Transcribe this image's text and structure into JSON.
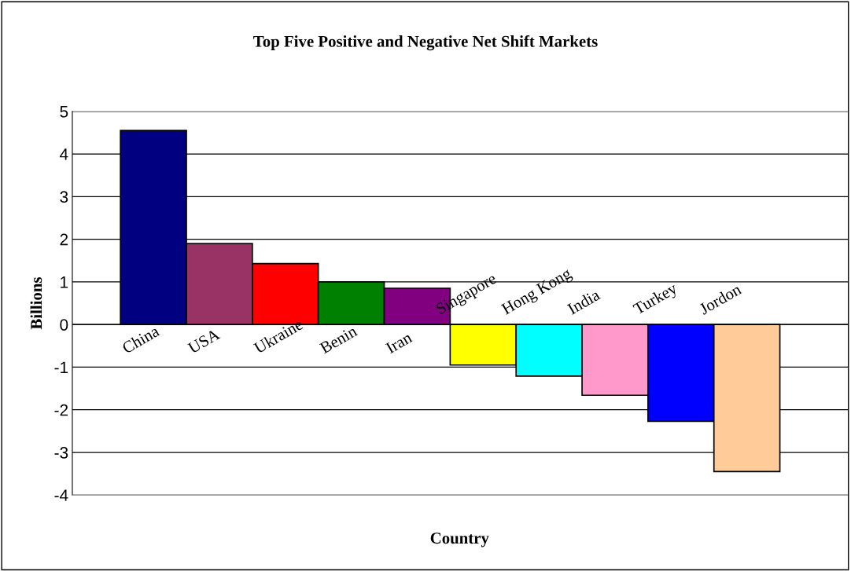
{
  "chart_data": {
    "type": "bar",
    "title": "Top Five Positive and Negative Net Shift Markets",
    "xlabel": "Country",
    "ylabel": "Billions",
    "categories": [
      "China",
      "USA",
      "Ukraine",
      "Benin",
      "Iran",
      "Singapore",
      "Hong Kong",
      "India",
      "Turkey",
      "Jordon"
    ],
    "values": [
      4.55,
      1.9,
      1.43,
      1.0,
      0.85,
      -0.95,
      -1.21,
      -1.66,
      -2.27,
      -3.45
    ],
    "colors": [
      "#000080",
      "#993366",
      "#ff0000",
      "#008000",
      "#800080",
      "#ffff00",
      "#00ffff",
      "#ff99cc",
      "#0000ff",
      "#ffcc99"
    ],
    "ylim": [
      -4,
      5
    ],
    "yticks": [
      -4,
      -3,
      -2,
      -1,
      0,
      1,
      2,
      3,
      4,
      5
    ],
    "grid": "y"
  }
}
